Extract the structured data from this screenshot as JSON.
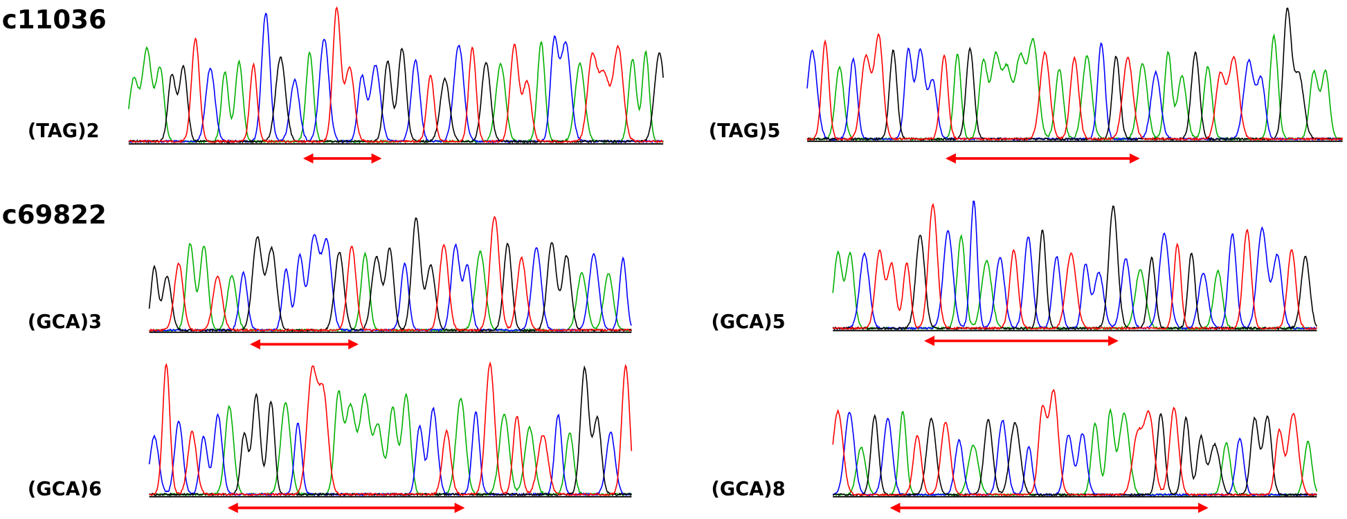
{
  "headers": [
    "c11036",
    "c69822"
  ],
  "panels": [
    {
      "label": "(TAG)2"
    },
    {
      "label": "(TAG)5"
    },
    {
      "label": "(GCA)3"
    },
    {
      "label": "(GCA)5"
    },
    {
      "label": "(GCA)6"
    },
    {
      "label": "(GCA)8"
    }
  ]
}
